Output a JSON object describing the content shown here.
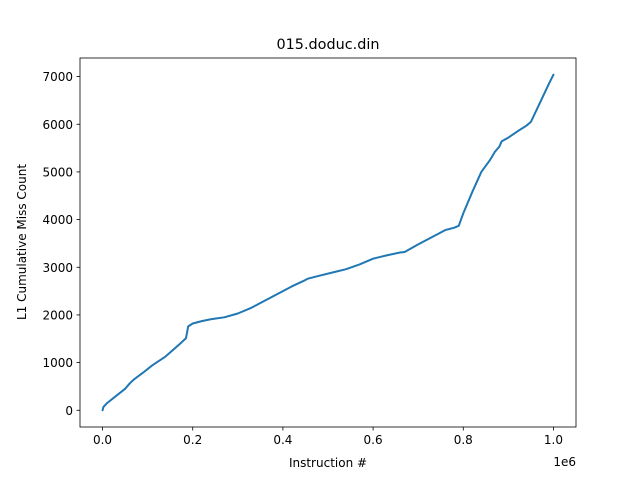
{
  "chart_data": {
    "type": "line",
    "title": "015.doduc.din",
    "xlabel": "Instruction #",
    "ylabel": "L1 Cumulative Miss Count",
    "x_offset_label": "1e6",
    "xlim": [
      -0.05,
      1.05
    ],
    "ylim": [
      -351,
      7390
    ],
    "x_ticks": [
      0.0,
      0.2,
      0.4,
      0.6,
      0.8,
      1.0
    ],
    "x_tick_labels": [
      "0.0",
      "0.2",
      "0.4",
      "0.6",
      "0.8",
      "1.0"
    ],
    "y_ticks": [
      0,
      1000,
      2000,
      3000,
      4000,
      5000,
      6000,
      7000
    ],
    "y_tick_labels": [
      "0",
      "1000",
      "2000",
      "3000",
      "4000",
      "5000",
      "6000",
      "7000"
    ],
    "grid": false,
    "line_color": "#1f77b4",
    "series": [
      {
        "x": [
          0.0,
          0.002,
          0.01,
          0.03,
          0.05,
          0.06,
          0.07,
          0.09,
          0.11,
          0.14,
          0.17,
          0.185,
          0.19,
          0.2,
          0.22,
          0.24,
          0.27,
          0.3,
          0.33,
          0.36,
          0.39,
          0.42,
          0.445,
          0.455,
          0.48,
          0.51,
          0.54,
          0.57,
          0.6,
          0.63,
          0.66,
          0.67,
          0.7,
          0.73,
          0.76,
          0.78,
          0.79,
          0.8,
          0.82,
          0.84,
          0.86,
          0.87,
          0.88,
          0.885,
          0.9,
          0.92,
          0.94,
          0.95,
          0.97,
          0.99,
          1.0
        ],
        "y": [
          0,
          70,
          150,
          300,
          450,
          560,
          650,
          790,
          940,
          1130,
          1380,
          1510,
          1760,
          1820,
          1870,
          1910,
          1950,
          2030,
          2150,
          2300,
          2450,
          2600,
          2710,
          2760,
          2820,
          2890,
          2960,
          3060,
          3180,
          3250,
          3310,
          3320,
          3480,
          3630,
          3780,
          3830,
          3870,
          4130,
          4580,
          5000,
          5260,
          5420,
          5530,
          5640,
          5720,
          5850,
          5970,
          6050,
          6450,
          6850,
          7040
        ]
      }
    ]
  }
}
